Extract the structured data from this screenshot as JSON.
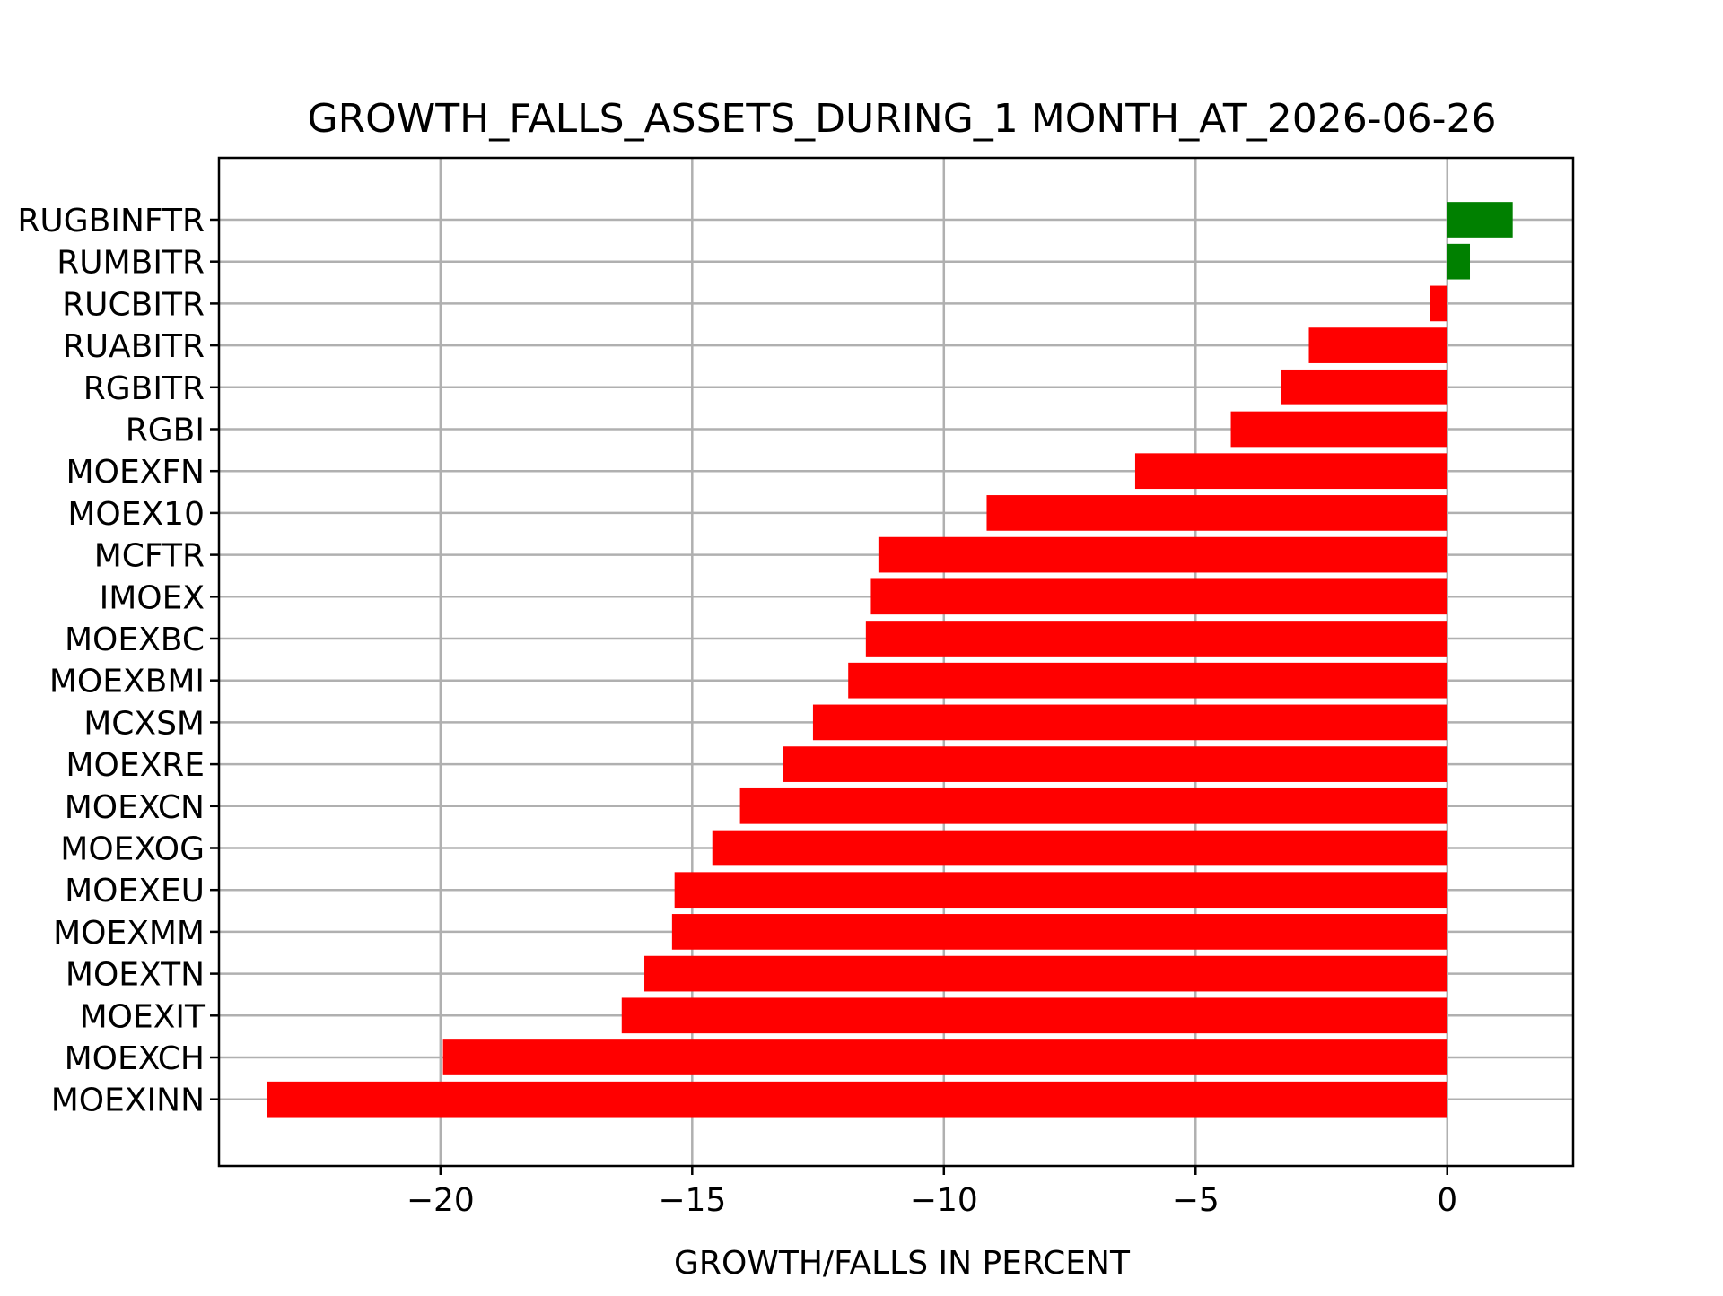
{
  "chart_data": {
    "type": "bar",
    "orientation": "horizontal",
    "title": "GROWTH_FALLS_ASSETS_DURING_1 MONTH_AT_2026-06-26",
    "xlabel": "GROWTH/FALLS IN PERCENT",
    "ylabel": "",
    "xlim": [
      -24.4,
      2.5
    ],
    "xticks": [
      -20,
      -15,
      -10,
      -5,
      0
    ],
    "xtick_labels": [
      "−20",
      "−15",
      "−10",
      "−5",
      "0"
    ],
    "grid": true,
    "positive_color": "#008000",
    "negative_color": "#ff0000",
    "categories": [
      "RUGBINFTR",
      "RUMBITR",
      "RUCBITR",
      "RUABITR",
      "RGBITR",
      "RGBI",
      "MOEXFN",
      "MOEX10",
      "MCFTR",
      "IMOEX",
      "MOEXBC",
      "MOEXBMI",
      "MCXSM",
      "MOEXRE",
      "MOEXCN",
      "MOEXOG",
      "MOEXEU",
      "MOEXMM",
      "MOEXTN",
      "MOEXIT",
      "MOEXCH",
      "MOEXINN"
    ],
    "values": [
      1.3,
      0.45,
      -0.35,
      -2.75,
      -3.3,
      -4.3,
      -6.2,
      -9.15,
      -11.3,
      -11.45,
      -11.55,
      -11.9,
      -12.6,
      -13.2,
      -14.05,
      -14.6,
      -15.35,
      -15.4,
      -15.95,
      -16.4,
      -19.95,
      -23.45
    ]
  }
}
